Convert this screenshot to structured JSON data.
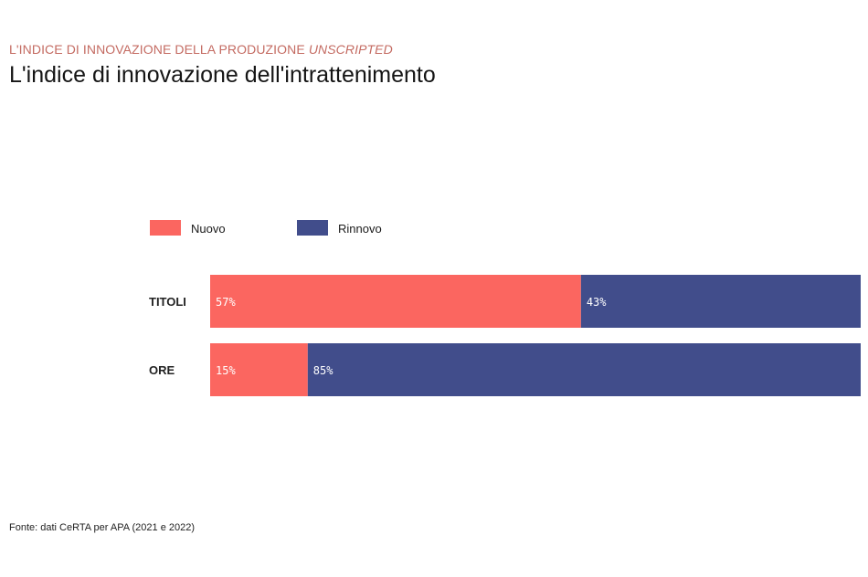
{
  "header": {
    "kicker": "L'INDICE DI INNOVAZIONE DELLA PRODUZIONE",
    "kicker_emphasis": "UNSCRIPTED",
    "title": "L'indice di innovazione dell'intrattenimento"
  },
  "source": "Fonte: dati CeRTA per APA (2021 e 2022)",
  "colors": {
    "kicker": "#c46b62",
    "nuovo": "#fb6660",
    "rinnovo": "#414d8b"
  },
  "chart_data": {
    "type": "bar",
    "orientation": "horizontal",
    "stacked": true,
    "normalized_percent": true,
    "categories": [
      "TITOLI",
      "ORE"
    ],
    "series": [
      {
        "name": "Nuovo",
        "values": [
          57,
          15
        ],
        "labels": [
          "57%",
          "15%"
        ]
      },
      {
        "name": "Rinnovo",
        "values": [
          43,
          85
        ],
        "labels": [
          "43%",
          "85%"
        ]
      }
    ],
    "xlim": [
      0,
      100
    ],
    "grid": false,
    "legend_position": "top-left"
  }
}
